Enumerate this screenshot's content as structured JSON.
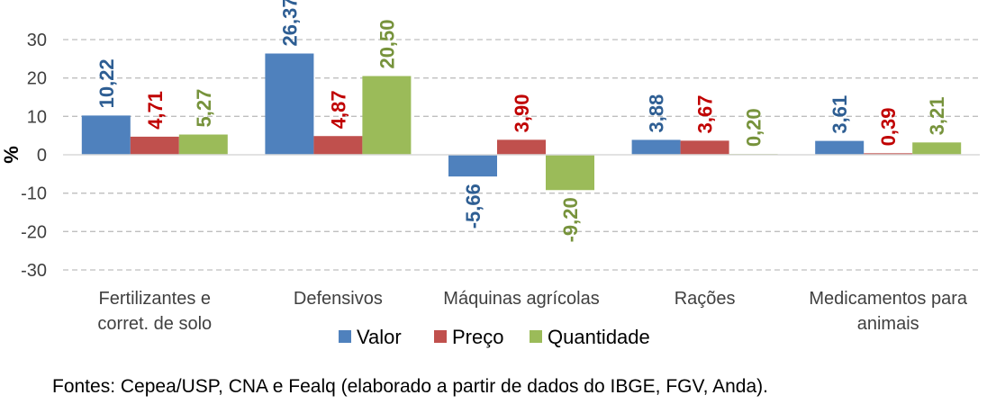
{
  "chart_data": {
    "type": "bar",
    "title": "",
    "xlabel": "",
    "ylabel": "%",
    "ylim": [
      -30,
      30
    ],
    "yticks": [
      "30",
      "20",
      "10",
      "0",
      "-10",
      "-20",
      "-30"
    ],
    "grid": true,
    "legend_position": "bottom",
    "categories": [
      [
        "Fertilizantes e",
        "corret. de solo"
      ],
      [
        "Defensivos"
      ],
      [
        "Máquinas agrícolas"
      ],
      [
        "Rações"
      ],
      [
        "Medicamentos para",
        "animais"
      ]
    ],
    "series": [
      {
        "name": "Valor",
        "color": "#4f81bd",
        "label_color": "#2e5e93",
        "values": [
          10.22,
          26.37,
          -5.66,
          3.88,
          3.61
        ],
        "labels": [
          "10,22",
          "26,37",
          "-5,66",
          "3,88",
          "3,61"
        ]
      },
      {
        "name": "Preço",
        "color": "#c0504d",
        "label_color": "#c00000",
        "values": [
          4.71,
          4.87,
          3.9,
          3.67,
          0.39
        ],
        "labels": [
          "4,71",
          "4,87",
          "3,90",
          "3,67",
          "0,39"
        ]
      },
      {
        "name": "Quantidade",
        "color": "#9bbb59",
        "label_color": "#77933c",
        "values": [
          5.27,
          20.5,
          -9.2,
          0.2,
          3.21
        ],
        "labels": [
          "5,27",
          "20,50",
          "-9,20",
          "0,20",
          "3,21"
        ]
      }
    ]
  },
  "source_note": "Fontes: Cepea/USP, CNA e Fealq (elaborado a partir de dados do IBGE, FGV, Anda)."
}
